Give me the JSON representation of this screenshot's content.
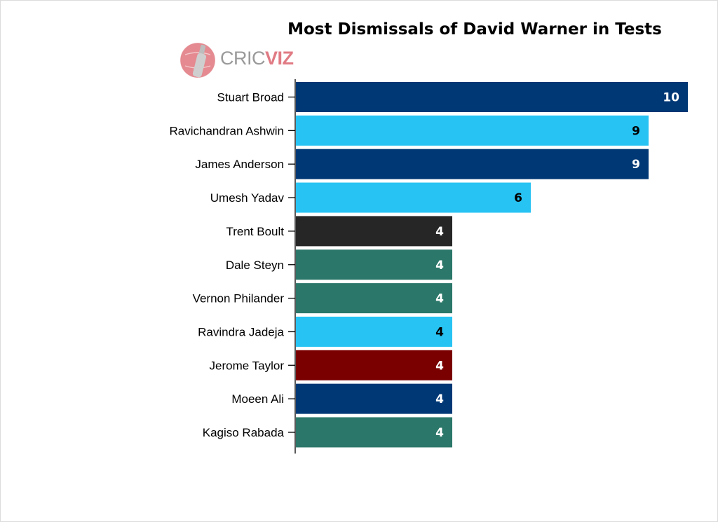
{
  "logo": {
    "part1": "CRIC",
    "part2": "VIZ",
    "icon": "cricket-bat-ball-icon"
  },
  "chart_data": {
    "type": "bar",
    "orientation": "horizontal",
    "title": "Most Dismissals of David Warner in Tests",
    "xlabel": "",
    "ylabel": "",
    "xlim": [
      0,
      10
    ],
    "grid": false,
    "categories": [
      "Stuart Broad",
      "Ravichandran Ashwin",
      "James Anderson",
      "Umesh Yadav",
      "Trent Boult",
      "Dale Steyn",
      "Vernon Philander",
      "Ravindra Jadeja",
      "Jerome Taylor",
      "Moeen Ali",
      "Kagiso Rabada"
    ],
    "values": [
      10,
      9,
      9,
      6,
      4,
      4,
      4,
      4,
      4,
      4,
      4
    ],
    "colors": [
      "#003875",
      "#27c3f3",
      "#003875",
      "#27c3f3",
      "#262626",
      "#2b7769",
      "#2b7769",
      "#27c3f3",
      "#7a0000",
      "#003875",
      "#2b7769"
    ],
    "label_colors": [
      "#ffffff",
      "#000000",
      "#ffffff",
      "#000000",
      "#ffffff",
      "#ffffff",
      "#ffffff",
      "#000000",
      "#ffffff",
      "#ffffff",
      "#ffffff"
    ]
  }
}
